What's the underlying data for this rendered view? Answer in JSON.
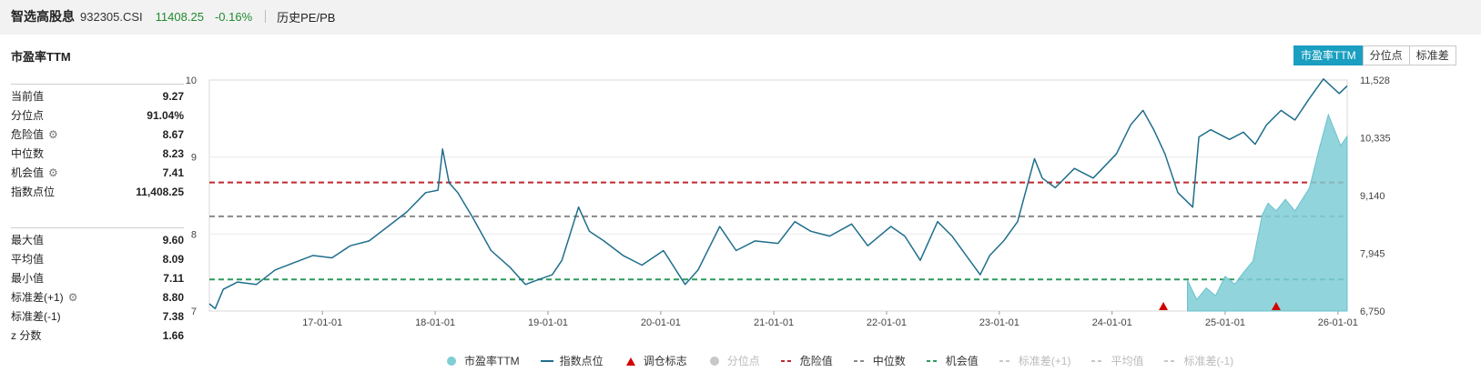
{
  "header": {
    "name": "智选高股息",
    "code": "932305.CSI",
    "price": "11408.25",
    "change": "-0.16%",
    "history": "历史PE/PB"
  },
  "panel": {
    "title": "市盈率TTM",
    "tabs": [
      "市盈率TTM",
      "分位点",
      "标准差"
    ]
  },
  "stats1": [
    {
      "label": "当前值",
      "value": "9.27"
    },
    {
      "label": "分位点",
      "value": "91.04%"
    },
    {
      "label": "危险值",
      "value": "8.67",
      "gear": true
    },
    {
      "label": "中位数",
      "value": "8.23"
    },
    {
      "label": "机会值",
      "value": "7.41",
      "gear": true
    },
    {
      "label": "指数点位",
      "value": "11,408.25"
    }
  ],
  "stats2": [
    {
      "label": "最大值",
      "value": "9.60"
    },
    {
      "label": "平均值",
      "value": "8.09"
    },
    {
      "label": "最小值",
      "value": "7.11"
    },
    {
      "label": "标准差(+1)",
      "value": "8.80",
      "gear": true
    },
    {
      "label": "标准差(-1)",
      "value": "7.38"
    },
    {
      "label": "z 分数",
      "value": "1.66"
    }
  ],
  "colors": {
    "index_line": "#1f6e8c",
    "pe_area": "#7fcdd5",
    "danger": "#c0282d",
    "median": "#8a8a8a",
    "opportunity": "#2e9a5c",
    "marker": "#d40000",
    "active_tab": "#1a9fc1"
  },
  "chart_data": {
    "type": "line",
    "left_axis": {
      "ticks": [
        "7",
        "8",
        "9",
        "10"
      ],
      "range": [
        7,
        10
      ]
    },
    "right_axis": {
      "ticks": [
        "6,750",
        "7,945",
        "9,140",
        "10,335",
        "11,528"
      ],
      "range": [
        6750,
        11528
      ]
    },
    "x_range": [
      "2016-01-01",
      "2026-01-31"
    ],
    "x_ticks": [
      "17-01-01",
      "18-01-01",
      "19-01-01",
      "20-01-01",
      "21-01-01",
      "22-01-01",
      "23-01-01",
      "24-01-01",
      "25-01-01",
      "26-01-01"
    ],
    "reference_lines": [
      {
        "name": "危险值",
        "value": 8.67,
        "style": "dashed"
      },
      {
        "name": "中位数",
        "value": 8.23,
        "style": "dashed"
      },
      {
        "name": "机会值",
        "value": 7.41,
        "style": "dashed"
      }
    ],
    "series": [
      {
        "name": "指数点位",
        "axis": "right",
        "points": [
          [
            "2016-01-01",
            6900
          ],
          [
            "2016-01-20",
            6800
          ],
          [
            "2016-02-15",
            7200
          ],
          [
            "2016-04-01",
            7350
          ],
          [
            "2016-06-01",
            7300
          ],
          [
            "2016-08-01",
            7600
          ],
          [
            "2016-10-01",
            7750
          ],
          [
            "2016-12-01",
            7900
          ],
          [
            "2017-02-01",
            7850
          ],
          [
            "2017-04-01",
            8100
          ],
          [
            "2017-06-01",
            8200
          ],
          [
            "2017-08-01",
            8500
          ],
          [
            "2017-10-01",
            8800
          ],
          [
            "2017-12-01",
            9200
          ],
          [
            "2018-01-10",
            9250
          ],
          [
            "2018-01-25",
            10100
          ],
          [
            "2018-02-15",
            9400
          ],
          [
            "2018-03-15",
            9200
          ],
          [
            "2018-05-01",
            8700
          ],
          [
            "2018-07-01",
            8000
          ],
          [
            "2018-09-01",
            7650
          ],
          [
            "2018-10-20",
            7300
          ],
          [
            "2018-12-01",
            7400
          ],
          [
            "2019-01-15",
            7500
          ],
          [
            "2019-02-15",
            7800
          ],
          [
            "2019-04-10",
            8900
          ],
          [
            "2019-05-15",
            8400
          ],
          [
            "2019-07-01",
            8200
          ],
          [
            "2019-09-01",
            7900
          ],
          [
            "2019-11-01",
            7700
          ],
          [
            "2020-01-10",
            8000
          ],
          [
            "2020-03-20",
            7300
          ],
          [
            "2020-05-01",
            7600
          ],
          [
            "2020-07-10",
            8500
          ],
          [
            "2020-09-01",
            8000
          ],
          [
            "2020-11-01",
            8200
          ],
          [
            "2021-01-15",
            8150
          ],
          [
            "2021-03-10",
            8600
          ],
          [
            "2021-05-01",
            8400
          ],
          [
            "2021-07-01",
            8300
          ],
          [
            "2021-09-10",
            8550
          ],
          [
            "2021-11-01",
            8100
          ],
          [
            "2022-01-15",
            8500
          ],
          [
            "2022-03-01",
            8300
          ],
          [
            "2022-04-20",
            7800
          ],
          [
            "2022-06-15",
            8600
          ],
          [
            "2022-08-01",
            8300
          ],
          [
            "2022-10-31",
            7500
          ],
          [
            "2022-12-01",
            7900
          ],
          [
            "2023-01-15",
            8200
          ],
          [
            "2023-03-01",
            8600
          ],
          [
            "2023-04-25",
            9900
          ],
          [
            "2023-05-20",
            9500
          ],
          [
            "2023-07-01",
            9300
          ],
          [
            "2023-09-01",
            9700
          ],
          [
            "2023-11-01",
            9500
          ],
          [
            "2024-01-15",
            10000
          ],
          [
            "2024-03-01",
            10600
          ],
          [
            "2024-04-10",
            10900
          ],
          [
            "2024-05-15",
            10500
          ],
          [
            "2024-06-20",
            10000
          ],
          [
            "2024-08-01",
            9200
          ],
          [
            "2024-09-18",
            8900
          ],
          [
            "2024-10-08",
            10350
          ],
          [
            "2024-11-15",
            10500
          ],
          [
            "2025-01-15",
            10300
          ],
          [
            "2025-03-01",
            10450
          ],
          [
            "2025-04-08",
            10200
          ],
          [
            "2025-05-15",
            10600
          ],
          [
            "2025-07-01",
            10900
          ],
          [
            "2025-08-15",
            10700
          ],
          [
            "2025-10-01",
            11150
          ],
          [
            "2025-11-15",
            11550
          ],
          [
            "2026-01-05",
            11250
          ],
          [
            "2026-01-31",
            11408
          ]
        ]
      },
      {
        "name": "市盈率TTM",
        "axis": "left",
        "style": "area",
        "points": [
          [
            "2024-09-01",
            7.4
          ],
          [
            "2024-10-01",
            7.15
          ],
          [
            "2024-11-01",
            7.3
          ],
          [
            "2024-12-01",
            7.2
          ],
          [
            "2025-01-01",
            7.45
          ],
          [
            "2025-02-01",
            7.35
          ],
          [
            "2025-03-01",
            7.5
          ],
          [
            "2025-04-01",
            7.65
          ],
          [
            "2025-05-01",
            8.25
          ],
          [
            "2025-05-20",
            8.4
          ],
          [
            "2025-06-15",
            8.3
          ],
          [
            "2025-07-15",
            8.45
          ],
          [
            "2025-08-15",
            8.3
          ],
          [
            "2025-10-01",
            8.6
          ],
          [
            "2025-11-01",
            9.1
          ],
          [
            "2025-12-01",
            9.55
          ],
          [
            "2026-01-10",
            9.15
          ],
          [
            "2026-01-31",
            9.27
          ]
        ]
      },
      {
        "name": "调仓标志",
        "style": "marker",
        "points": [
          [
            "2024-06-15",
            7
          ],
          [
            "2025-06-15",
            7
          ]
        ]
      }
    ],
    "legend": [
      {
        "name": "市盈率TTM",
        "kind": "circle",
        "active": true
      },
      {
        "name": "指数点位",
        "kind": "line",
        "active": true
      },
      {
        "name": "调仓标志",
        "kind": "triangle",
        "active": true
      },
      {
        "name": "分位点",
        "kind": "circle",
        "active": false
      },
      {
        "name": "危险值",
        "kind": "dash",
        "active": true
      },
      {
        "name": "中位数",
        "kind": "dash",
        "active": true
      },
      {
        "name": "机会值",
        "kind": "dash",
        "active": true
      },
      {
        "name": "标准差(+1)",
        "kind": "dash",
        "active": false
      },
      {
        "name": "平均值",
        "kind": "dash",
        "active": false
      },
      {
        "name": "标准差(-1)",
        "kind": "dash",
        "active": false
      }
    ],
    "legend_position": "bottom"
  }
}
